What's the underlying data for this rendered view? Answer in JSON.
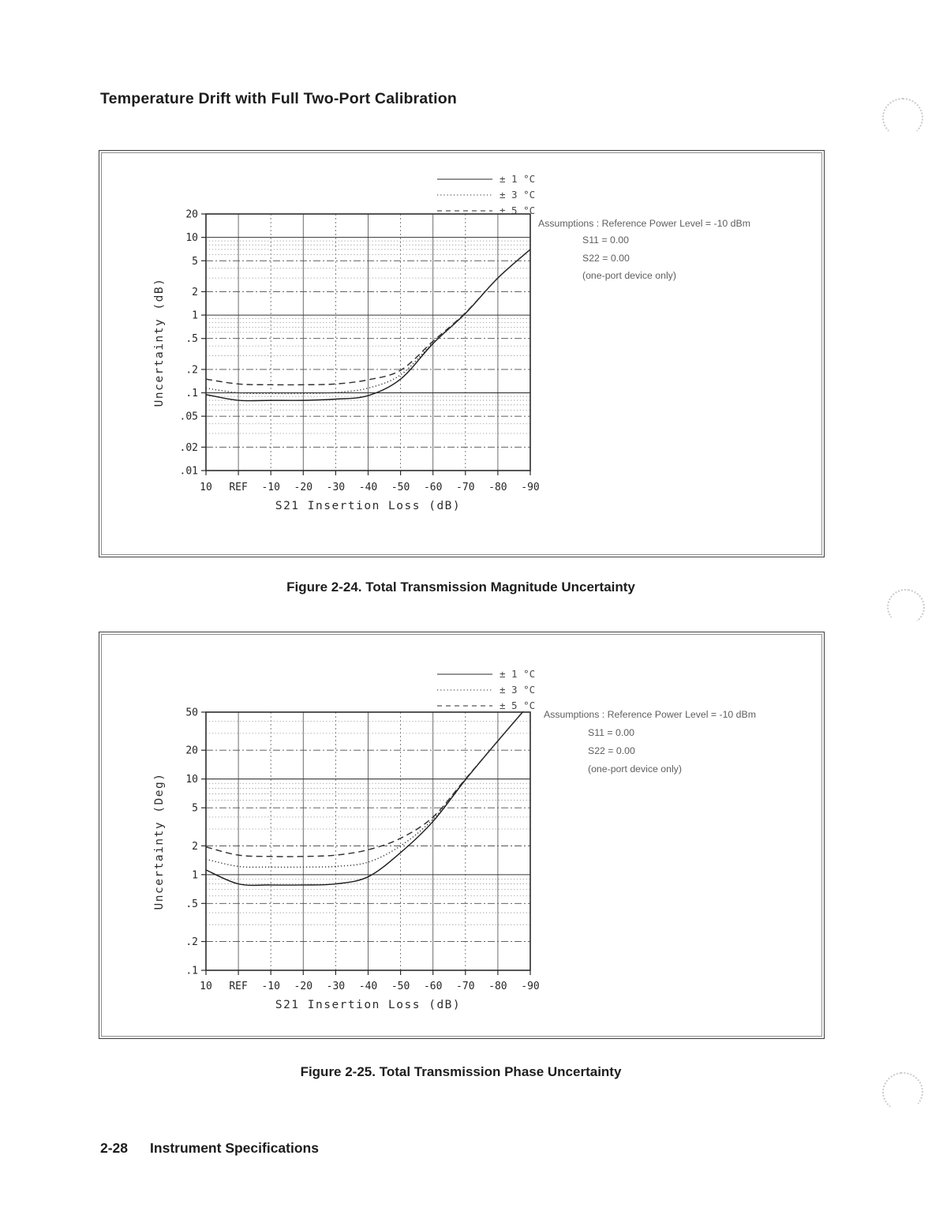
{
  "page": {
    "title": "Temperature Drift with Full Two-Port Calibration",
    "footer": {
      "page_number": "2-28",
      "label": "Instrument Specifications"
    }
  },
  "figures": [
    {
      "caption": "Figure 2-24. Total Transmission Magnitude Uncertainty"
    },
    {
      "caption": "Figure 2-25. Total Transmission Phase Uncertainty"
    }
  ],
  "chart_data": [
    {
      "type": "line",
      "title": "Total Transmission Magnitude Uncertainty",
      "xlabel": "S21 Insertion Loss (dB)",
      "ylabel": "Uncertainty (dB)",
      "xscale": "linear reversed",
      "yscale": "log",
      "xlim": [
        10,
        -90
      ],
      "ylim": [
        0.01,
        20
      ],
      "x": [
        10,
        0,
        -10,
        -20,
        -30,
        -40,
        -50,
        -60,
        -70,
        -80,
        -90
      ],
      "x_tick_labels": [
        "10",
        "REF",
        "-10",
        "-20",
        "-30",
        "-40",
        "-50",
        "-60",
        "-70",
        "-80",
        "-90"
      ],
      "y_ticks": [
        20,
        10,
        5,
        2,
        1,
        0.5,
        0.2,
        0.1,
        0.05,
        0.02,
        0.01
      ],
      "y_tick_labels": [
        "20",
        "10",
        "5",
        "2",
        "1",
        ".5",
        ".2",
        ".1",
        ".05",
        ".02",
        ".01"
      ],
      "grid": "log minor gridlines on",
      "legend_position": "above plot, top-right",
      "series": [
        {
          "name": "± 1 °C",
          "style": "solid",
          "values": [
            0.095,
            0.08,
            0.08,
            0.08,
            0.083,
            0.092,
            0.15,
            0.43,
            1.05,
            3.0,
            7.0
          ]
        },
        {
          "name": "± 3 °C",
          "style": "dotted",
          "values": [
            0.115,
            0.1,
            0.098,
            0.098,
            0.101,
            0.115,
            0.17,
            0.44,
            1.06,
            3.0,
            7.0
          ]
        },
        {
          "name": "± 5 °C",
          "style": "dashed",
          "values": [
            0.15,
            0.13,
            0.127,
            0.127,
            0.13,
            0.147,
            0.195,
            0.46,
            1.07,
            3.0,
            7.0
          ]
        }
      ],
      "annotations": [
        "Assumptions : Reference Power Level = -10 dBm",
        "S11 = 0.00",
        "S22 = 0.00",
        "(one-port device only)"
      ]
    },
    {
      "type": "line",
      "title": "Total Transmission Phase Uncertainty",
      "xlabel": "S21 Insertion Loss (dB)",
      "ylabel": "Uncertainty (Deg)",
      "xscale": "linear reversed",
      "yscale": "log",
      "xlim": [
        10,
        -90
      ],
      "ylim": [
        0.1,
        50
      ],
      "x": [
        10,
        0,
        -10,
        -20,
        -30,
        -40,
        -50,
        -60,
        -70,
        -80,
        -90
      ],
      "x_tick_labels": [
        "10",
        "REF",
        "-10",
        "-20",
        "-30",
        "-40",
        "-50",
        "-60",
        "-70",
        "-80",
        "-90"
      ],
      "y_ticks": [
        50,
        20,
        10,
        5,
        2,
        1,
        0.5,
        0.2,
        0.1
      ],
      "y_tick_labels": [
        "50",
        "20",
        "10",
        "5",
        "2",
        "1",
        ".5",
        ".2",
        ".1"
      ],
      "grid": "log minor gridlines on",
      "legend_position": "above plot, top-right",
      "series": [
        {
          "name": "± 1 °C",
          "style": "solid",
          "values": [
            1.12,
            0.8,
            0.78,
            0.78,
            0.8,
            0.95,
            1.7,
            3.6,
            9.8,
            25,
            62
          ]
        },
        {
          "name": "± 3 °C",
          "style": "dotted",
          "values": [
            1.45,
            1.22,
            1.2,
            1.2,
            1.22,
            1.35,
            2.0,
            3.8,
            9.9,
            25,
            62
          ]
        },
        {
          "name": "± 5 °C",
          "style": "dashed",
          "values": [
            1.95,
            1.6,
            1.55,
            1.55,
            1.6,
            1.82,
            2.4,
            4.0,
            10.0,
            25,
            62
          ]
        }
      ],
      "annotations": [
        "Assumptions : Reference Power Level = -10 dBm",
        "S11 = 0.00",
        "S22 = 0.00",
        "(one-port device only)"
      ]
    }
  ]
}
